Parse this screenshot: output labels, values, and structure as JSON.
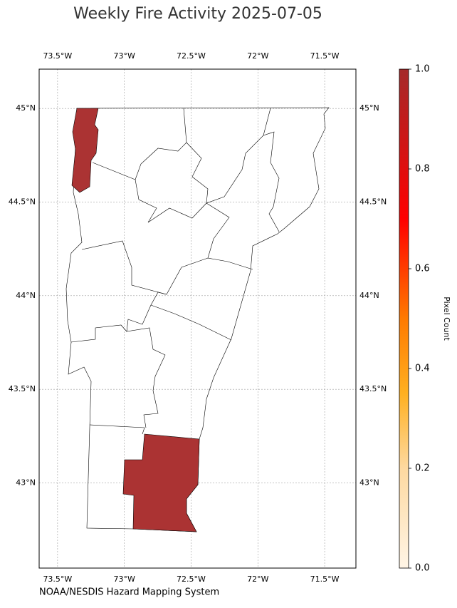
{
  "chart_data": {
    "type": "map",
    "title": "Weekly Fire Activity 2025-07-05",
    "source": "NOAA/NESDIS Hazard Mapping System",
    "xlim": [
      -73.638,
      -71.266
    ],
    "ylim": [
      42.545,
      45.21
    ],
    "xticks": [
      {
        "value": -73.5,
        "label": "73.5°W"
      },
      {
        "value": -73,
        "label": "73°W"
      },
      {
        "value": -72.5,
        "label": "72.5°W"
      },
      {
        "value": -72,
        "label": "72°W"
      },
      {
        "value": -71.5,
        "label": "71.5°W"
      }
    ],
    "yticks": [
      {
        "value": 45,
        "label": "45°N"
      },
      {
        "value": 44.5,
        "label": "44.5°N"
      },
      {
        "value": 44,
        "label": "44°N"
      },
      {
        "value": 43.5,
        "label": "43.5°N"
      },
      {
        "value": 43,
        "label": "43°N"
      }
    ],
    "grid": true,
    "fire_color": "#ab3333",
    "colorbar": {
      "label": "Pixel Count",
      "lim": [
        0,
        1
      ],
      "ticks": [
        {
          "value": 0,
          "label": "0.0"
        },
        {
          "value": 0.2,
          "label": "0.2"
        },
        {
          "value": 0.4,
          "label": "0.4"
        },
        {
          "value": 0.6,
          "label": "0.6"
        },
        {
          "value": 0.8,
          "label": "0.8"
        },
        {
          "value": 1,
          "label": "1.0"
        }
      ]
    }
  }
}
